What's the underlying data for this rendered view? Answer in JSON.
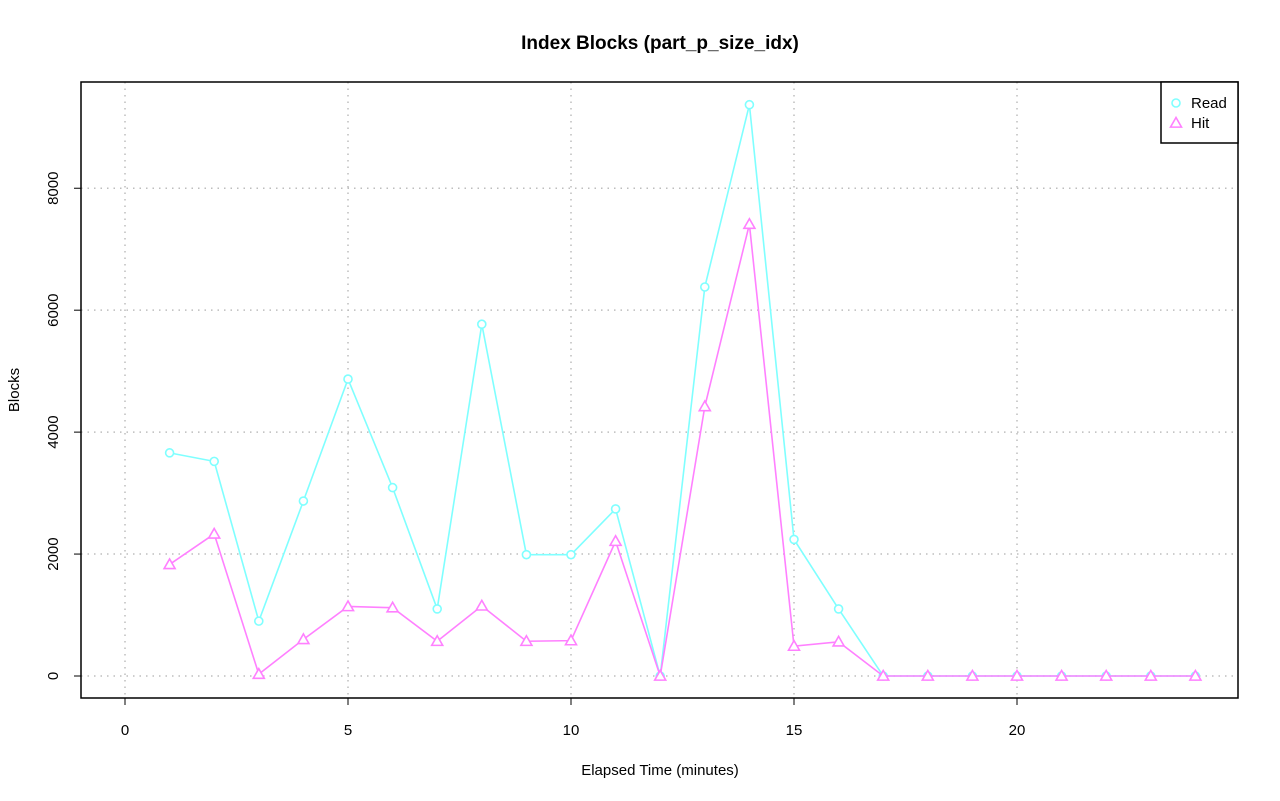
{
  "chart_data": {
    "type": "line",
    "title": "Index Blocks (part_p_size_idx)",
    "xlabel": "Elapsed Time (minutes)",
    "ylabel": "Blocks",
    "xlim": [
      0,
      24
    ],
    "ylim": [
      0,
      9400
    ],
    "xticks": [
      0,
      5,
      10,
      15,
      20
    ],
    "yticks": [
      0,
      2000,
      4000,
      6000,
      8000
    ],
    "grid": true,
    "legend_position": "top-right",
    "x": [
      1,
      2,
      3,
      4,
      5,
      6,
      7,
      8,
      9,
      10,
      11,
      12,
      13,
      14,
      15,
      16,
      17,
      18,
      19,
      20,
      21,
      22,
      23,
      24
    ],
    "series": [
      {
        "name": "Read",
        "color": "#7fffff",
        "marker": "circle",
        "values": [
          3660,
          3520,
          900,
          2870,
          4870,
          3090,
          1100,
          5770,
          1990,
          1990,
          2740,
          0,
          6380,
          9370,
          2240,
          1100,
          0,
          0,
          0,
          0,
          0,
          0,
          0,
          0
        ]
      },
      {
        "name": "Hit",
        "color": "#ff80ff",
        "marker": "triangle",
        "values": [
          1830,
          2330,
          30,
          600,
          1140,
          1120,
          570,
          1150,
          570,
          580,
          2210,
          0,
          4420,
          7410,
          490,
          560,
          0,
          0,
          0,
          0,
          0,
          0,
          0,
          0
        ]
      }
    ]
  }
}
